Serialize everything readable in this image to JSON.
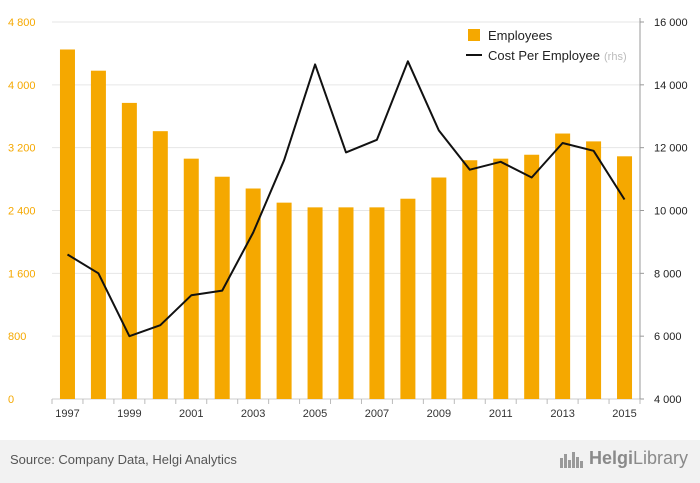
{
  "chart_data": {
    "type": "bar+line",
    "categories": [
      "1997",
      "1998",
      "1999",
      "2000",
      "2001",
      "2002",
      "2003",
      "2004",
      "2005",
      "2006",
      "2007",
      "2008",
      "2009",
      "2010",
      "2011",
      "2012",
      "2013",
      "2014",
      "2015"
    ],
    "x_tick_labels": [
      "1997",
      "1999",
      "2001",
      "2003",
      "2005",
      "2007",
      "2009",
      "2011",
      "2013",
      "2015"
    ],
    "series": [
      {
        "name": "Employees",
        "kind": "bar",
        "axis": "left",
        "color": "#f5a800",
        "values": [
          4450,
          4180,
          3770,
          3410,
          3060,
          2830,
          2680,
          2500,
          2440,
          2440,
          2440,
          2550,
          2820,
          3040,
          3060,
          3110,
          3380,
          3280,
          3090
        ]
      },
      {
        "name": "Cost Per Employee",
        "legend_suffix": "(rhs)",
        "kind": "line",
        "axis": "right",
        "color": "#111111",
        "values": [
          8600,
          8000,
          6000,
          6350,
          7300,
          7450,
          9300,
          11600,
          14650,
          11850,
          12250,
          14750,
          12550,
          11300,
          11550,
          11050,
          12150,
          11900,
          10350
        ]
      }
    ],
    "y_left": {
      "min": 0,
      "max": 4800,
      "ticks": [
        0,
        800,
        1600,
        2400,
        3200,
        4000,
        4800
      ],
      "tick_labels": [
        "0",
        "800",
        "1 600",
        "2 400",
        "3 200",
        "4 000",
        "4 800"
      ],
      "color": "#f5a800"
    },
    "y_right": {
      "min": 4000,
      "max": 16000,
      "ticks": [
        4000,
        6000,
        8000,
        10000,
        12000,
        14000,
        16000
      ],
      "tick_labels": [
        "4 000",
        "6 000",
        "8 000",
        "10 000",
        "12 000",
        "14 000",
        "16 000"
      ],
      "color": "#222222"
    },
    "grid": true,
    "legend_position": "top-right"
  },
  "footer": {
    "source": "Source: Company Data, Helgi Analytics",
    "brand_part1": "Helgi",
    "brand_part2": "Library",
    "brand_color": "#8a8a8a"
  }
}
